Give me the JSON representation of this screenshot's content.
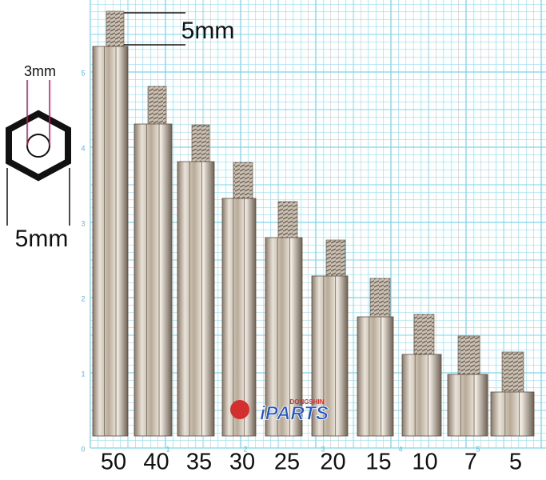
{
  "dimensions": {
    "thread_length": "5mm",
    "hole_diameter": "3mm",
    "hex_width": "5mm"
  },
  "grid_labels": {
    "vertical": [
      "0",
      "1",
      "2",
      "3",
      "4",
      "5"
    ],
    "horizontal": [
      "1",
      "2",
      "3",
      "4",
      "5"
    ]
  },
  "logo": {
    "small": "DONGSHIN",
    "main": "iPARTS"
  },
  "lengths": [
    "50",
    "40",
    "35",
    "30",
    "25",
    "20",
    "15",
    "10",
    "7",
    "5"
  ]
}
